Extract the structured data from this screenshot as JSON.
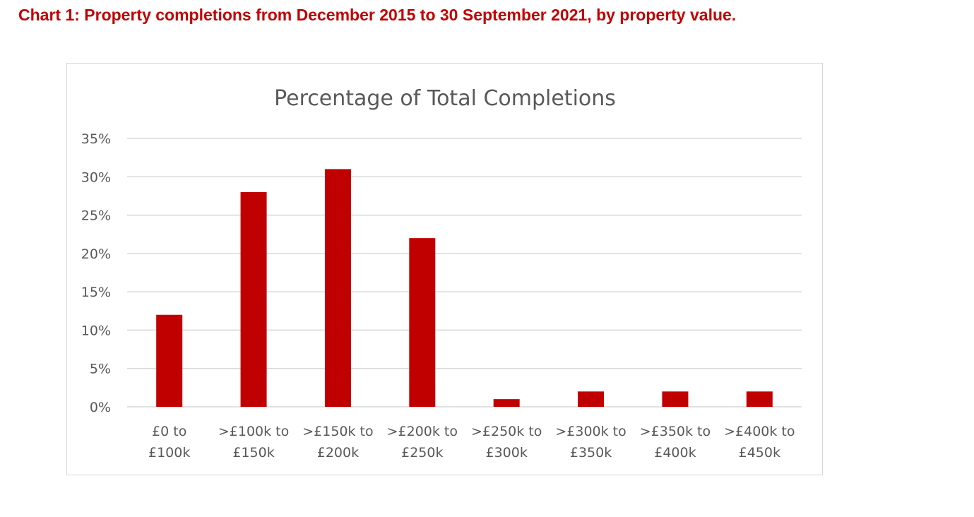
{
  "heading": "Chart 1: Property completions from December 2015 to 30 September 2021, by property value.",
  "colors": {
    "heading": "#c00000",
    "bar": "#c00000",
    "grid": "#d9d9d9",
    "text": "#595959"
  },
  "chart_data": {
    "type": "bar",
    "title": "Percentage of Total Completions",
    "xlabel": "",
    "ylabel": "",
    "categories": [
      [
        "£0 to",
        "£100k"
      ],
      [
        ">£100k to",
        "£150k"
      ],
      [
        ">£150k to",
        "£200k"
      ],
      [
        ">£200k to",
        "£250k"
      ],
      [
        ">£250k to",
        "£300k"
      ],
      [
        ">£300k to",
        "£350k"
      ],
      [
        ">£350k to",
        "£400k"
      ],
      [
        ">£400k to",
        "£450k"
      ]
    ],
    "values": [
      12,
      28,
      31,
      22,
      1,
      2,
      2,
      2
    ],
    "ylim": [
      0,
      35
    ],
    "yticks": [
      0,
      5,
      10,
      15,
      20,
      25,
      30,
      35
    ],
    "ytick_labels": [
      "0%",
      "5%",
      "10%",
      "15%",
      "20%",
      "25%",
      "30%",
      "35%"
    ],
    "grid": true,
    "legend": "none"
  }
}
